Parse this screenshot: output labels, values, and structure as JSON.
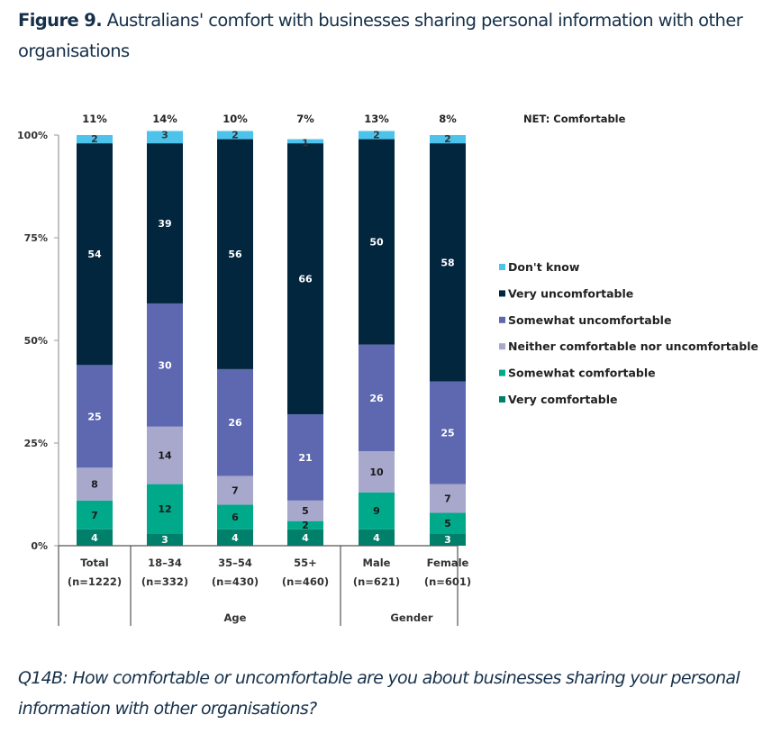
{
  "figure": {
    "label": "Figure 9.",
    "title": "Australians' comfort with businesses sharing personal information with other organisations"
  },
  "caption": {
    "question": "Q14B: How comfortable or uncomfortable are you about businesses sharing your personal information with other organisations?"
  },
  "chart_data": {
    "type": "bar",
    "stacked": true,
    "title": "Australians' comfort with businesses sharing personal information with other organisations",
    "xlabel": "",
    "ylabel": "",
    "ylim": [
      0,
      100
    ],
    "yticks": [
      "0%",
      "25%",
      "50%",
      "75%",
      "100%"
    ],
    "ytick_values": [
      0,
      25,
      50,
      75,
      100
    ],
    "grid": false,
    "legend_position": "right",
    "categories": [
      "Total",
      "18–34",
      "35–54",
      "55+",
      "Male",
      "Female"
    ],
    "category_n": [
      "(n=1222)",
      "(n=332)",
      "(n=430)",
      "(n=460)",
      "(n=621)",
      "(n=601)"
    ],
    "groups": [
      {
        "label": "",
        "categories": [
          "Total"
        ]
      },
      {
        "label": "Age",
        "categories": [
          "18–34",
          "35–54",
          "55+"
        ]
      },
      {
        "label": "Gender",
        "categories": [
          "Male",
          "Female"
        ]
      }
    ],
    "net_label": "NET: Comfortable",
    "net_values": [
      "11%",
      "14%",
      "10%",
      "7%",
      "13%",
      "8%"
    ],
    "series": [
      {
        "name": "Very comfortable",
        "color": "#007f6b",
        "label_color": "#ffffff",
        "values": [
          4,
          3,
          4,
          4,
          4,
          3
        ]
      },
      {
        "name": "Somewhat comfortable",
        "color": "#00a98a",
        "label_color": "#1a1a1a",
        "values": [
          7,
          12,
          6,
          2,
          9,
          5
        ]
      },
      {
        "name": "Neither comfortable nor uncomfortable",
        "color": "#a7a8cc",
        "label_color": "#1a1a1a",
        "values": [
          8,
          14,
          7,
          5,
          10,
          7
        ]
      },
      {
        "name": "Somewhat uncomfortable",
        "color": "#5e68b0",
        "label_color": "#ffffff",
        "values": [
          25,
          30,
          26,
          21,
          26,
          25
        ]
      },
      {
        "name": "Very uncomfortable",
        "color": "#03263f",
        "label_color": "#ffffff",
        "values": [
          54,
          39,
          56,
          66,
          50,
          58
        ]
      },
      {
        "name": "Don't know",
        "color": "#4dc3ec",
        "label_color": "#333333",
        "values": [
          2,
          3,
          2,
          1,
          2,
          2
        ]
      }
    ],
    "legend_order": [
      "Don't know",
      "Very uncomfortable",
      "Somewhat uncomfortable",
      "Neither comfortable nor uncomfortable",
      "Somewhat comfortable",
      "Very comfortable"
    ]
  }
}
